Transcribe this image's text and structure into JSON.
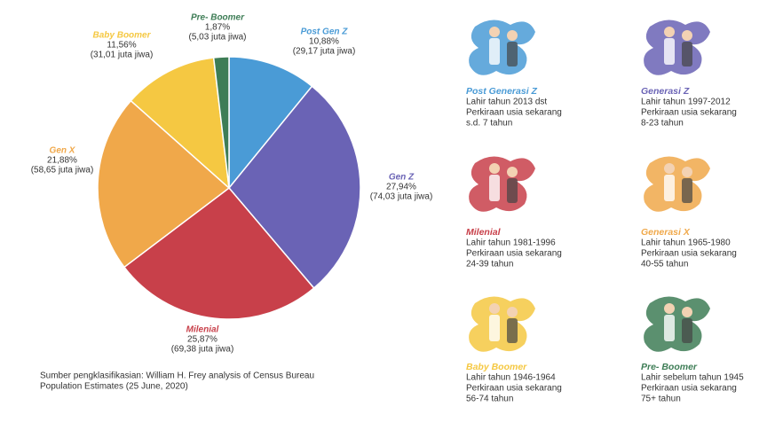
{
  "chart_data": {
    "type": "pie",
    "categories": [
      "Post Gen Z",
      "Gen Z",
      "Milenial",
      "Gen X",
      "Baby Boomer",
      "Pre- Boomer"
    ],
    "values": [
      10.88,
      27.94,
      25.87,
      21.88,
      11.56,
      1.87
    ],
    "value_labels": [
      "10,88%",
      "27,94%",
      "25,87%",
      "21,88%",
      "11,56%",
      "1,87%"
    ],
    "population_labels": [
      "(29,17 juta jiwa)",
      "(74,03 juta jiwa)",
      "(69,38 juta jiwa)",
      "(58,65 juta jiwa)",
      "(31,01 juta jiwa)",
      "(5,03 juta jiwa)"
    ],
    "colors": [
      "#4a9bd6",
      "#6a63b5",
      "#c8404a",
      "#f0a84a",
      "#f5c842",
      "#3e7d56"
    ],
    "source": [
      "Sumber pengklasifikasian: William H. Frey analysis of Census Bureau",
      "Population Estimates (25 June, 2020)"
    ]
  },
  "cards": [
    {
      "title": "Post Generasi Z",
      "color": "#4a9bd6",
      "lines": [
        "Lahir tahun 2013 dst",
        "Perkiraan usia sekarang",
        "s.d. 7 tahun"
      ]
    },
    {
      "title": "Generasi Z",
      "color": "#6a63b5",
      "lines": [
        "Lahir tahun 1997-2012",
        "Perkiraan usia sekarang",
        "8-23 tahun"
      ]
    },
    {
      "title": "Milenial",
      "color": "#c8404a",
      "lines": [
        "Lahir tahun 1981-1996",
        "Perkiraan usia sekarang",
        "24-39 tahun"
      ]
    },
    {
      "title": "Generasi X",
      "color": "#f0a84a",
      "lines": [
        "Lahir tahun 1965-1980",
        "Perkiraan usia sekarang",
        "40-55 tahun"
      ]
    },
    {
      "title": "Baby Boomer",
      "color": "#f5c842",
      "lines": [
        "Lahir tahun 1946-1964",
        "Perkiraan usia sekarang",
        "56-74 tahun"
      ]
    },
    {
      "title": "Pre- Boomer",
      "color": "#3e7d56",
      "lines": [
        "Lahir sebelum tahun 1945",
        "Perkiraan usia sekarang",
        "75+ tahun"
      ]
    }
  ]
}
